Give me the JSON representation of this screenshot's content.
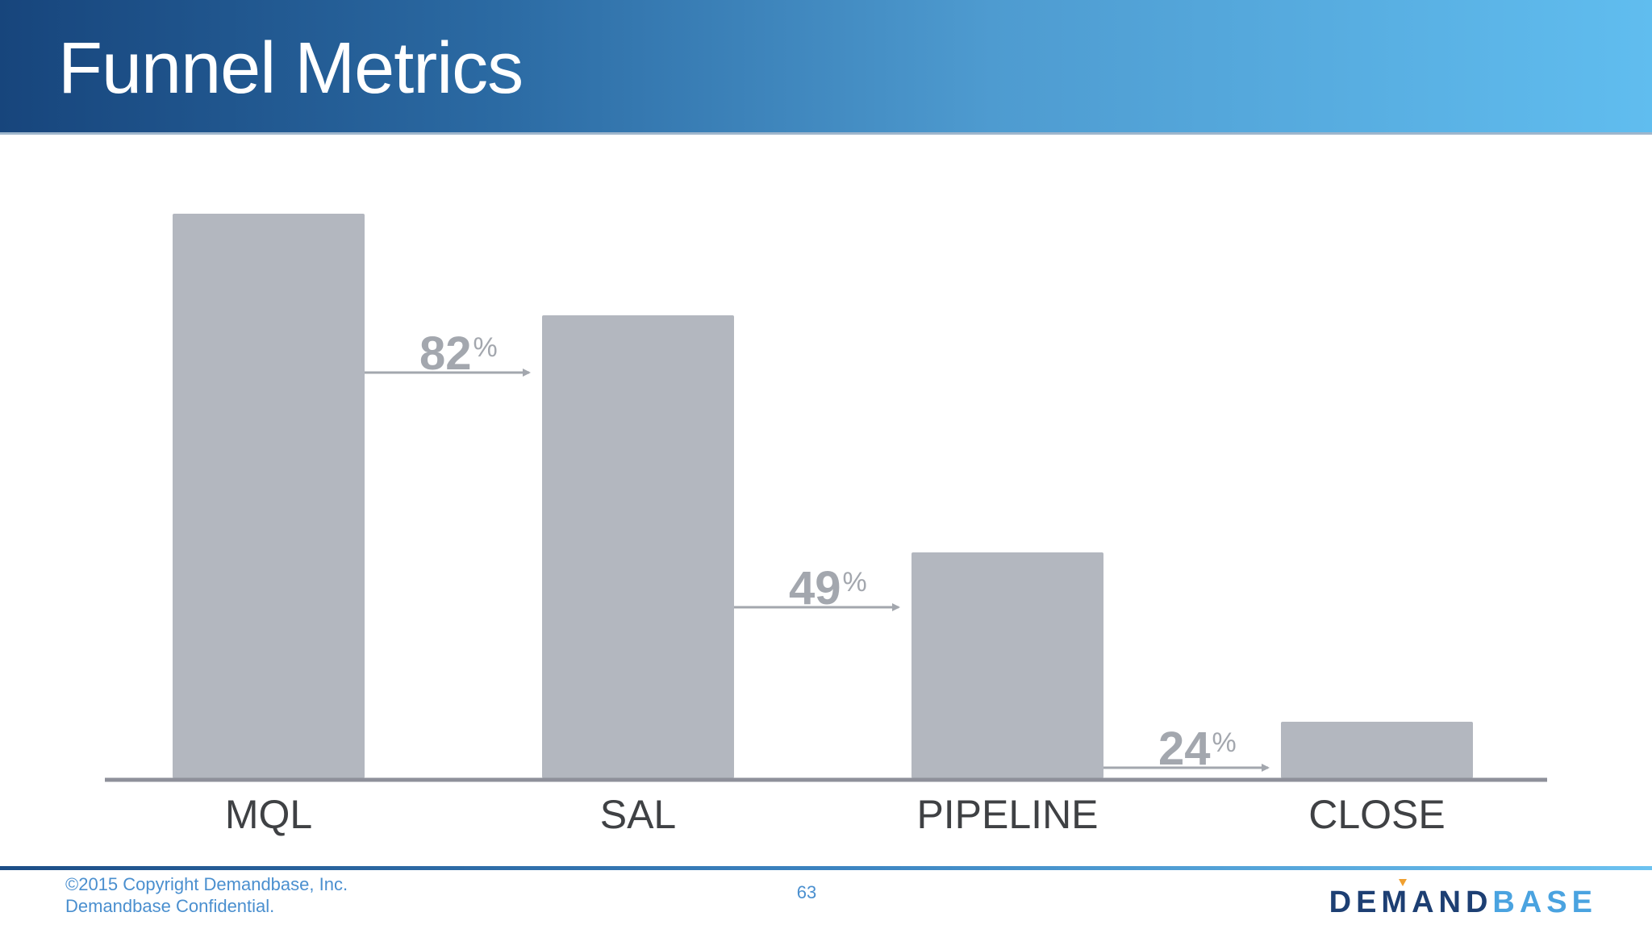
{
  "slide": {
    "title": "Funnel Metrics",
    "page_number": "63"
  },
  "footer": {
    "copyright": "©2015 Copyright Demandbase, Inc.",
    "confidential": "Demandbase Confidential."
  },
  "logo": {
    "part1": "DEMAND",
    "part2": "BASE"
  },
  "colors": {
    "bar": "#b3b7bf",
    "baseline": "#8e909a",
    "arrow": "#a3a7ae",
    "header_dark": "#17457c",
    "header_light": "#60bdef",
    "logo_dark": "#1d3f73",
    "logo_light": "#4aa3e0"
  },
  "chart_data": {
    "type": "bar",
    "categories": [
      "MQL",
      "SAL",
      "PIPELINE",
      "CLOSE"
    ],
    "values": [
      100,
      82,
      40,
      10
    ],
    "conversion_rates": [
      {
        "from": "MQL",
        "to": "SAL",
        "value": "82",
        "unit": "%"
      },
      {
        "from": "SAL",
        "to": "PIPELINE",
        "value": "49",
        "unit": "%"
      },
      {
        "from": "PIPELINE",
        "to": "CLOSE",
        "value": "24",
        "unit": "%"
      }
    ],
    "title": "",
    "xlabel": "",
    "ylabel": "",
    "ylim": [
      0,
      100
    ],
    "grid": false,
    "legend": "none"
  }
}
